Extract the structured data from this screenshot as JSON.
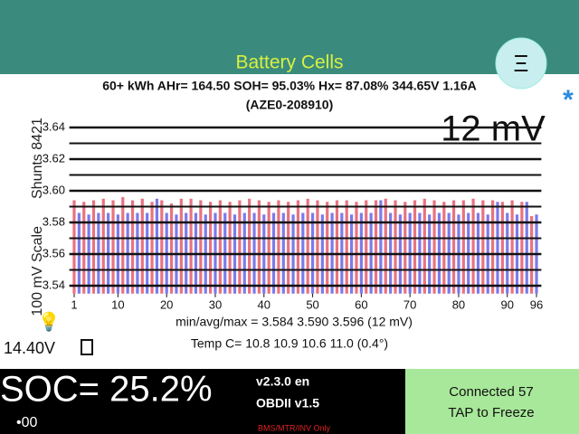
{
  "header": {
    "title": "Battery Cells",
    "menu": "Ξ",
    "bluetooth": "*"
  },
  "stats": {
    "line1": "60+ kWh  AHr= 164.50  SOH= 95.03%   Hx= 87.08%   344.65V 1.16A",
    "line2": "(AZE0-208910)"
  },
  "chart_data": {
    "type": "bar",
    "ylabel_left": "100 mV Scale",
    "ylabel_right": "Shunts 8421",
    "scale_note": "12 mV",
    "values": [
      3.594,
      3.586,
      3.593,
      3.585,
      3.594,
      3.586,
      3.595,
      3.586,
      3.594,
      3.585,
      3.596,
      3.586,
      3.594,
      3.586,
      3.595,
      3.586,
      3.593,
      3.595,
      3.594,
      3.586,
      3.592,
      3.585,
      3.595,
      3.586,
      3.595,
      3.586,
      3.594,
      3.585,
      3.593,
      3.586,
      3.594,
      3.586,
      3.593,
      3.585,
      3.594,
      3.586,
      3.595,
      3.586,
      3.594,
      3.585,
      3.593,
      3.586,
      3.594,
      3.586,
      3.593,
      3.585,
      3.594,
      3.586,
      3.595,
      3.586,
      3.594,
      3.585,
      3.593,
      3.586,
      3.594,
      3.586,
      3.594,
      3.585,
      3.593,
      3.586,
      3.594,
      3.586,
      3.594,
      3.594,
      3.595,
      3.586,
      3.594,
      3.585,
      3.593,
      3.586,
      3.594,
      3.586,
      3.595,
      3.585,
      3.594,
      3.586,
      3.593,
      3.586,
      3.594,
      3.585,
      3.594,
      3.586,
      3.595,
      3.586,
      3.594,
      3.585,
      3.594,
      3.593,
      3.593,
      3.586,
      3.594,
      3.585,
      3.593,
      3.593,
      3.584,
      3.585
    ],
    "bar_colors": [
      "#e8737f",
      "#7b7be8"
    ],
    "xlim": [
      0,
      97
    ],
    "xticks": [
      1,
      10,
      20,
      30,
      40,
      50,
      60,
      70,
      80,
      90,
      96
    ],
    "ylim": [
      3.535,
      3.645
    ],
    "yticks": [
      3.54,
      3.56,
      3.58,
      {
        "value": 3.6,
        "label": "3.60"
      },
      3.62,
      3.64
    ],
    "minor_yticks": [
      3.55,
      3.57,
      3.59,
      3.61,
      3.63
    ],
    "grid": true
  },
  "footer": {
    "minmax": "min/avg/max = 3.584 3.590 3.596  (12 mV)",
    "temp": "Temp C= 10.8  10.9  10.6  11.0  (0.4°)",
    "voltage": "14.40V",
    "soc": "SOC= 25.2%",
    "dots": "•00",
    "version": "v2.3.0 en",
    "obd": "OBDII  v1.5",
    "mode": "BMS/MTR/INV Only",
    "connected": "Connected 57",
    "tap": "TAP to Freeze"
  }
}
